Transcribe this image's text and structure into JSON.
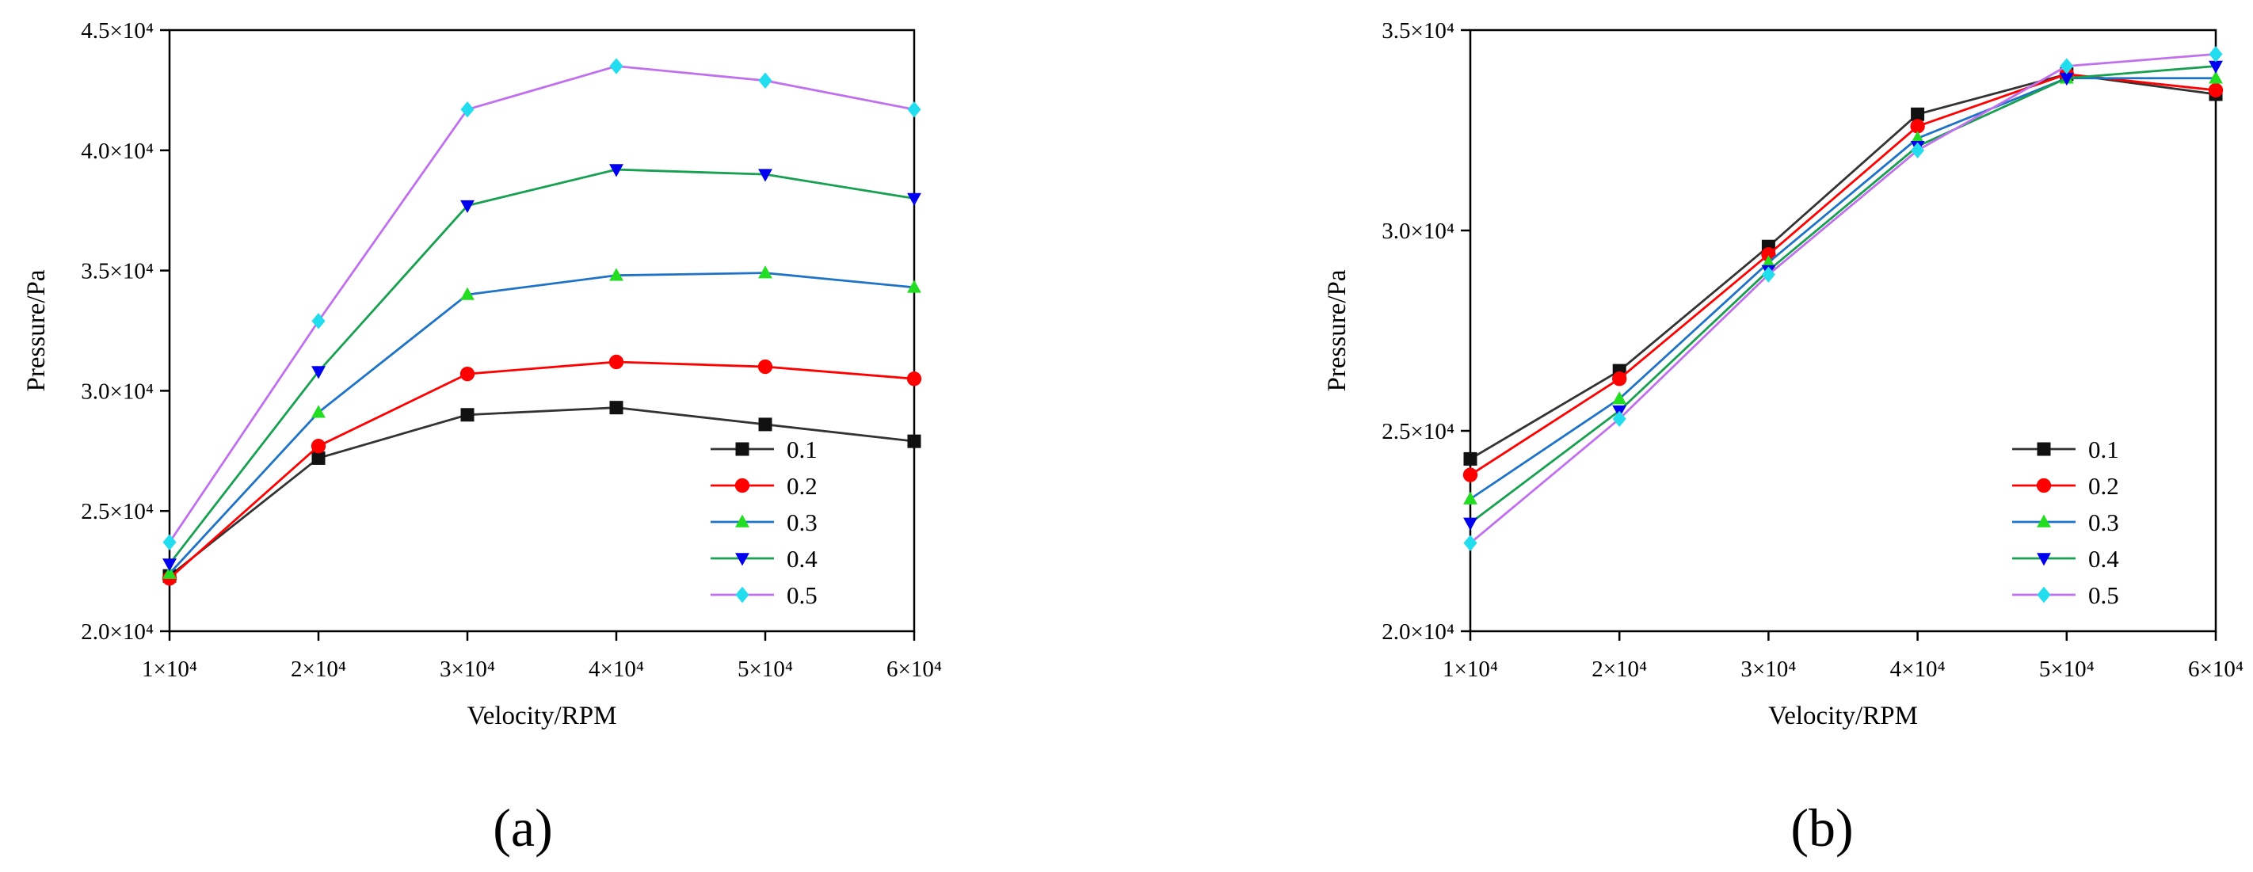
{
  "chart_data": [
    {
      "type": "line",
      "panel_label": "(a)",
      "xlabel": "Velocity/RPM",
      "ylabel": "Pressure/Pa",
      "xlim": [
        10000,
        60000
      ],
      "ylim": [
        20000,
        45000
      ],
      "x": [
        10000,
        20000,
        30000,
        40000,
        50000,
        60000
      ],
      "x_tick_labels": [
        "1×10⁴",
        "2×10⁴",
        "3×10⁴",
        "4×10⁴",
        "5×10⁴",
        "6×10⁴"
      ],
      "y_ticks": [
        20000,
        25000,
        30000,
        35000,
        40000,
        45000
      ],
      "y_tick_labels": [
        "2.0×10⁴",
        "2.5×10⁴",
        "3.0×10⁴",
        "3.5×10⁴",
        "4.0×10⁴",
        "4.5×10⁴"
      ],
      "legend_position": "lower-right",
      "grid": false,
      "series": [
        {
          "name": "0.1",
          "color": "#333333",
          "marker": "square",
          "values": [
            22300,
            27200,
            29000,
            29300,
            28600,
            27900
          ]
        },
        {
          "name": "0.2",
          "color": "#ff0000",
          "marker": "circle",
          "values": [
            22200,
            27700,
            30700,
            31200,
            31000,
            30500
          ]
        },
        {
          "name": "0.3",
          "color": "#1e73c8",
          "marker": "triangle-up",
          "markerColor": "#22dd22",
          "values": [
            22400,
            29100,
            34000,
            34800,
            34900,
            34300
          ]
        },
        {
          "name": "0.4",
          "color": "#16a050",
          "marker": "triangle-down",
          "markerColor": "#0000ee",
          "values": [
            22800,
            30800,
            37700,
            39200,
            39000,
            38000
          ]
        },
        {
          "name": "0.5",
          "color": "#c070ee",
          "marker": "diamond",
          "markerColor": "#22ddee",
          "values": [
            23700,
            32900,
            41700,
            43500,
            42900,
            41700
          ]
        }
      ]
    },
    {
      "type": "line",
      "panel_label": "(b)",
      "xlabel": "Velocity/RPM",
      "ylabel": "Pressure/Pa",
      "xlim": [
        10000,
        60000
      ],
      "ylim": [
        20000,
        35000
      ],
      "x": [
        10000,
        20000,
        30000,
        40000,
        50000,
        60000
      ],
      "x_tick_labels": [
        "1×10⁴",
        "2×10⁴",
        "3×10⁴",
        "4×10⁴",
        "5×10⁴",
        "6×10⁴"
      ],
      "y_ticks": [
        20000,
        25000,
        30000,
        35000
      ],
      "y_tick_labels": [
        "2.0×10⁴",
        "2.5×10⁴",
        "3.0×10⁴",
        "3.5×10⁴"
      ],
      "legend_position": "lower-right",
      "grid": false,
      "series": [
        {
          "name": "0.1",
          "color": "#333333",
          "marker": "square",
          "values": [
            24300,
            26500,
            29600,
            32900,
            33900,
            33400
          ]
        },
        {
          "name": "0.2",
          "color": "#ff0000",
          "marker": "circle",
          "values": [
            23900,
            26300,
            29400,
            32600,
            33900,
            33500
          ]
        },
        {
          "name": "0.3",
          "color": "#1e73c8",
          "marker": "triangle-up",
          "markerColor": "#22dd22",
          "values": [
            23300,
            25800,
            29200,
            32300,
            33800,
            33800
          ]
        },
        {
          "name": "0.4",
          "color": "#16a050",
          "marker": "triangle-down",
          "markerColor": "#0000ee",
          "values": [
            22700,
            25500,
            29000,
            32100,
            33800,
            34100
          ]
        },
        {
          "name": "0.5",
          "color": "#c070ee",
          "marker": "diamond",
          "markerColor": "#22ddee",
          "values": [
            22200,
            25300,
            28900,
            32000,
            34100,
            34400
          ]
        }
      ]
    }
  ]
}
